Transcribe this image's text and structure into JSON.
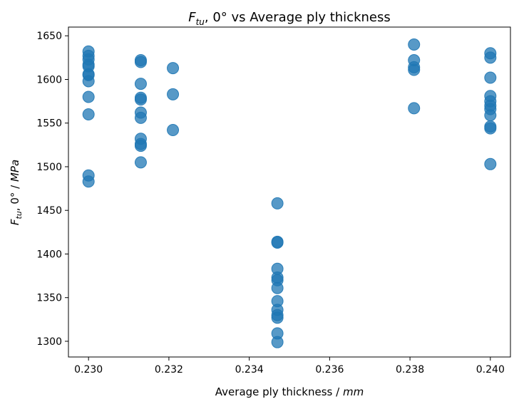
{
  "chart_data": {
    "type": "scatter",
    "title_main": "F",
    "title_sub": "tu",
    "title_rest": ", 0° vs Average ply thickness",
    "xlabel_text": "Average ply thickness / ",
    "xlabel_unit": "mm",
    "ylabel_main": "F",
    "ylabel_sub": "tu",
    "ylabel_mid": ", 0° / ",
    "ylabel_unit": "MPa",
    "xlim": [
      0.2295,
      0.2405
    ],
    "ylim": [
      1282,
      1660
    ],
    "xticks": [
      "0.230",
      "0.232",
      "0.234",
      "0.236",
      "0.238",
      "0.240"
    ],
    "xtick_values": [
      0.23,
      0.232,
      0.234,
      0.236,
      0.238,
      0.24
    ],
    "yticks": [
      "1300",
      "1350",
      "1400",
      "1450",
      "1500",
      "1550",
      "1600",
      "1650"
    ],
    "ytick_values": [
      1300,
      1350,
      1400,
      1450,
      1500,
      1550,
      1600,
      1650
    ],
    "grid": false,
    "marker_color": "#1f77b4",
    "points": [
      {
        "x": 0.23,
        "y": 1632
      },
      {
        "x": 0.23,
        "y": 1627
      },
      {
        "x": 0.23,
        "y": 1623
      },
      {
        "x": 0.23,
        "y": 1617
      },
      {
        "x": 0.23,
        "y": 1615
      },
      {
        "x": 0.23,
        "y": 1606
      },
      {
        "x": 0.23,
        "y": 1605
      },
      {
        "x": 0.23,
        "y": 1598
      },
      {
        "x": 0.23,
        "y": 1580
      },
      {
        "x": 0.23,
        "y": 1560
      },
      {
        "x": 0.23,
        "y": 1490
      },
      {
        "x": 0.23,
        "y": 1483
      },
      {
        "x": 0.2313,
        "y": 1622
      },
      {
        "x": 0.2313,
        "y": 1620
      },
      {
        "x": 0.2313,
        "y": 1595
      },
      {
        "x": 0.2313,
        "y": 1579
      },
      {
        "x": 0.2313,
        "y": 1577
      },
      {
        "x": 0.2313,
        "y": 1562
      },
      {
        "x": 0.2313,
        "y": 1556
      },
      {
        "x": 0.2313,
        "y": 1532
      },
      {
        "x": 0.2313,
        "y": 1526
      },
      {
        "x": 0.2313,
        "y": 1524
      },
      {
        "x": 0.2313,
        "y": 1505
      },
      {
        "x": 0.2321,
        "y": 1613
      },
      {
        "x": 0.2321,
        "y": 1583
      },
      {
        "x": 0.2321,
        "y": 1542
      },
      {
        "x": 0.2347,
        "y": 1458
      },
      {
        "x": 0.2347,
        "y": 1414
      },
      {
        "x": 0.2347,
        "y": 1413
      },
      {
        "x": 0.2347,
        "y": 1383
      },
      {
        "x": 0.2347,
        "y": 1373
      },
      {
        "x": 0.2347,
        "y": 1370
      },
      {
        "x": 0.2347,
        "y": 1361
      },
      {
        "x": 0.2347,
        "y": 1346
      },
      {
        "x": 0.2347,
        "y": 1336
      },
      {
        "x": 0.2347,
        "y": 1330
      },
      {
        "x": 0.2347,
        "y": 1327
      },
      {
        "x": 0.2347,
        "y": 1309
      },
      {
        "x": 0.2347,
        "y": 1299
      },
      {
        "x": 0.2381,
        "y": 1640
      },
      {
        "x": 0.2381,
        "y": 1622
      },
      {
        "x": 0.2381,
        "y": 1614
      },
      {
        "x": 0.2381,
        "y": 1611
      },
      {
        "x": 0.2381,
        "y": 1567
      },
      {
        "x": 0.24,
        "y": 1630
      },
      {
        "x": 0.24,
        "y": 1625
      },
      {
        "x": 0.24,
        "y": 1602
      },
      {
        "x": 0.24,
        "y": 1581
      },
      {
        "x": 0.24,
        "y": 1575
      },
      {
        "x": 0.24,
        "y": 1570
      },
      {
        "x": 0.24,
        "y": 1566
      },
      {
        "x": 0.24,
        "y": 1559
      },
      {
        "x": 0.24,
        "y": 1546
      },
      {
        "x": 0.24,
        "y": 1544
      },
      {
        "x": 0.24,
        "y": 1503
      }
    ]
  }
}
